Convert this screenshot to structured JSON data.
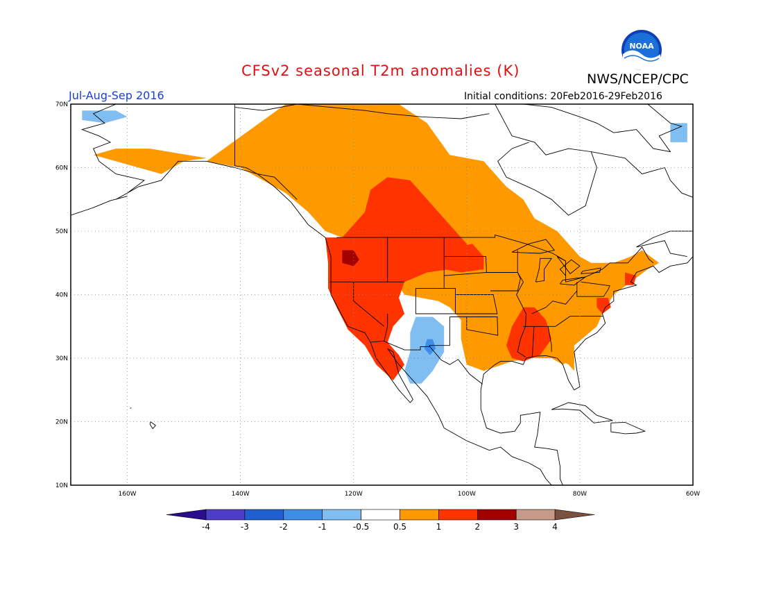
{
  "header": {
    "title": "CFSv2 seasonal T2m anomalies (K)",
    "org": "NWS/NCEP/CPC",
    "season": "Jul-Aug-Sep 2016",
    "initial_conditions": "Initial conditions: 20Feb2016-29Feb2016",
    "logo_text": "NOAA"
  },
  "axes": {
    "lat_ticks": [
      "70N",
      "60N",
      "50N",
      "40N",
      "30N",
      "20N",
      "10N"
    ],
    "lon_ticks": [
      "160W",
      "140W",
      "120W",
      "100W",
      "80W",
      "60W"
    ],
    "lon_range": [
      -170,
      -60
    ],
    "lat_range": [
      10,
      70
    ],
    "grid": "dotted"
  },
  "colorbar": {
    "labels": [
      "-4",
      "-3",
      "-2",
      "-1",
      "-0.5",
      "0.5",
      "1",
      "2",
      "3",
      "4"
    ],
    "colors": [
      "#2a0d8c",
      "#4d3ec8",
      "#1f5fd0",
      "#3e8ee6",
      "#80bdf0",
      "#ffffff",
      "#ff9900",
      "#ff3300",
      "#a30000",
      "#c79a88",
      "#7a5040"
    ]
  },
  "chart_data": {
    "type": "heatmap",
    "title": "CFSv2 seasonal T2m anomalies (K)",
    "units": "K",
    "bins": [
      -4,
      -3,
      -2,
      -1,
      -0.5,
      0.5,
      1,
      2,
      3,
      4
    ],
    "regions": [
      {
        "area": "Pacific Northwest / Great Basin / Northern Rockies",
        "anomaly_range": "1 to 2",
        "max_cells": "2 to 3"
      },
      {
        "area": "Western Canada (British Columbia / Alberta)",
        "anomaly_range": "1 to 2"
      },
      {
        "area": "Alaska / Yukon / Northern Canada",
        "anomaly_range": "0.5 to 1"
      },
      {
        "area": "Great Plains / Eastern US",
        "anomaly_range": "0.5 to 1"
      },
      {
        "area": "Lower Mississippi Valley",
        "anomaly_range": "1 to 2"
      },
      {
        "area": "Mid-Atlantic coast",
        "anomaly_range": "1 to 2"
      },
      {
        "area": "Four Corners / New Mexico / Northwest Mexico",
        "anomaly_range": "-1 to -0.5",
        "min_cells": "-2 to -1"
      },
      {
        "area": "Far western Alaska coast",
        "anomaly_range": "-1 to -0.5"
      },
      {
        "area": "Labrador / Baffin coast",
        "anomaly_range": "-1 to -0.5"
      }
    ]
  }
}
